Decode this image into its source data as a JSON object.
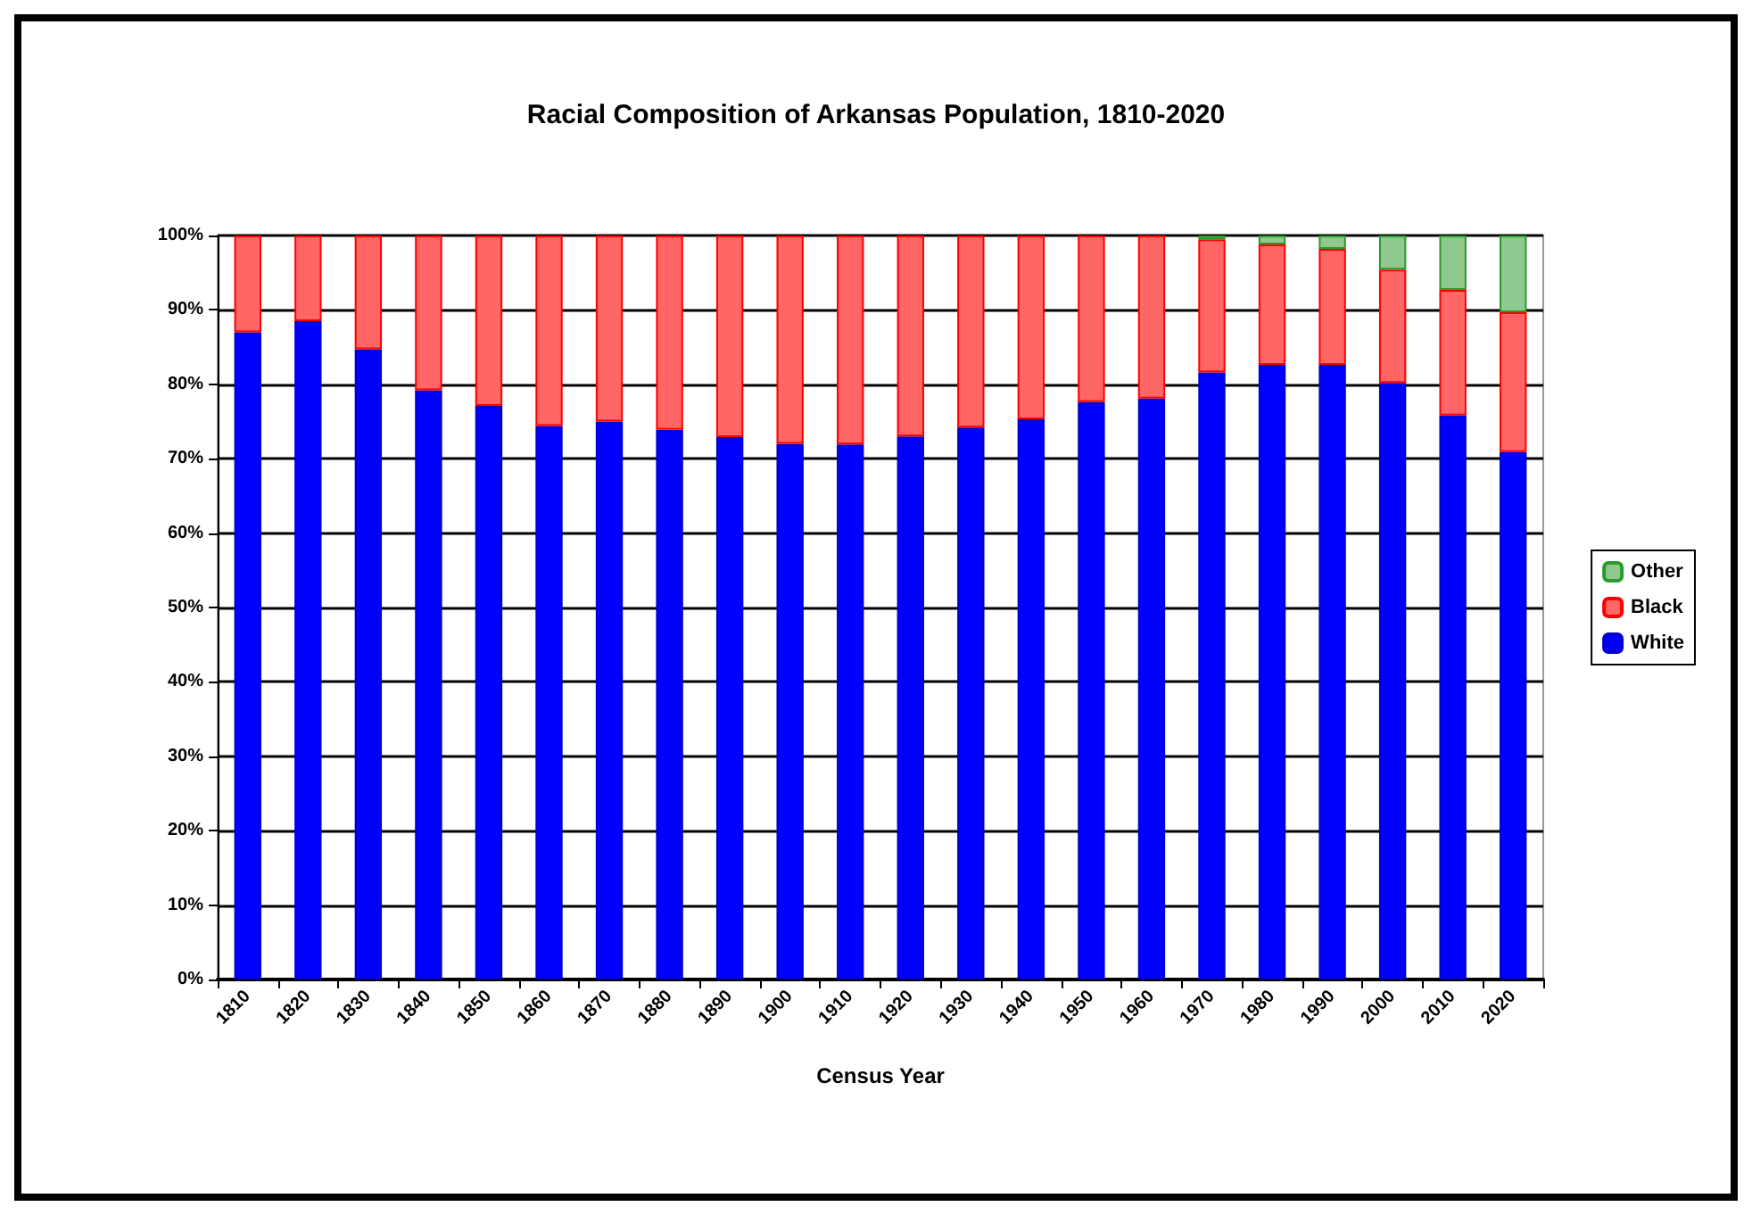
{
  "chart_data": {
    "type": "bar",
    "title": "Racial Composition of Arkansas Population, 1810-2020",
    "xlabel": "Census Year",
    "categories": [
      "1810",
      "1820",
      "1830",
      "1840",
      "1850",
      "1860",
      "1870",
      "1880",
      "1890",
      "1900",
      "1910",
      "1920",
      "1930",
      "1940",
      "1950",
      "1960",
      "1970",
      "1980",
      "1990",
      "2000",
      "2010",
      "2020"
    ],
    "stacked": true,
    "series": [
      {
        "name": "White",
        "color": "#0000ff",
        "values": [
          87,
          88.5,
          84.7,
          79.2,
          77.1,
          74.4,
          75,
          73.9,
          72.9,
          72,
          71.9,
          73,
          74.2,
          75.3,
          77.6,
          78.1,
          81.6,
          82.6,
          82.6,
          80.2,
          75.8,
          70.9
        ]
      },
      {
        "name": "Black",
        "color": "#ff6666",
        "values": [
          13,
          11.5,
          15.3,
          20.8,
          22.9,
          25.6,
          25,
          26.1,
          27.1,
          28,
          28.1,
          27,
          25.8,
          24.7,
          22.4,
          21.9,
          17.9,
          16.2,
          15.6,
          15.2,
          16.9,
          18.8
        ]
      },
      {
        "name": "Other",
        "color": "#8fc98f",
        "values": [
          null,
          null,
          null,
          null,
          null,
          null,
          null,
          null,
          null,
          null,
          null,
          null,
          null,
          null,
          null,
          null,
          0.5,
          1.2,
          1.8,
          4.6,
          7.3,
          10.3
        ]
      }
    ],
    "ylim": [
      0,
      100
    ],
    "yticks": [
      {
        "value": 0,
        "label": "0%"
      },
      {
        "value": 10,
        "label": "10%"
      },
      {
        "value": 20,
        "label": "20%"
      },
      {
        "value": 30,
        "label": "30%"
      },
      {
        "value": 40,
        "label": "40%"
      },
      {
        "value": 50,
        "label": "50%"
      },
      {
        "value": 60,
        "label": "60%"
      },
      {
        "value": 70,
        "label": "70%"
      },
      {
        "value": 80,
        "label": "80%"
      },
      {
        "value": 90,
        "label": "90%"
      },
      {
        "value": 100,
        "label": "100%"
      }
    ],
    "grid": "y",
    "legend": "right"
  }
}
